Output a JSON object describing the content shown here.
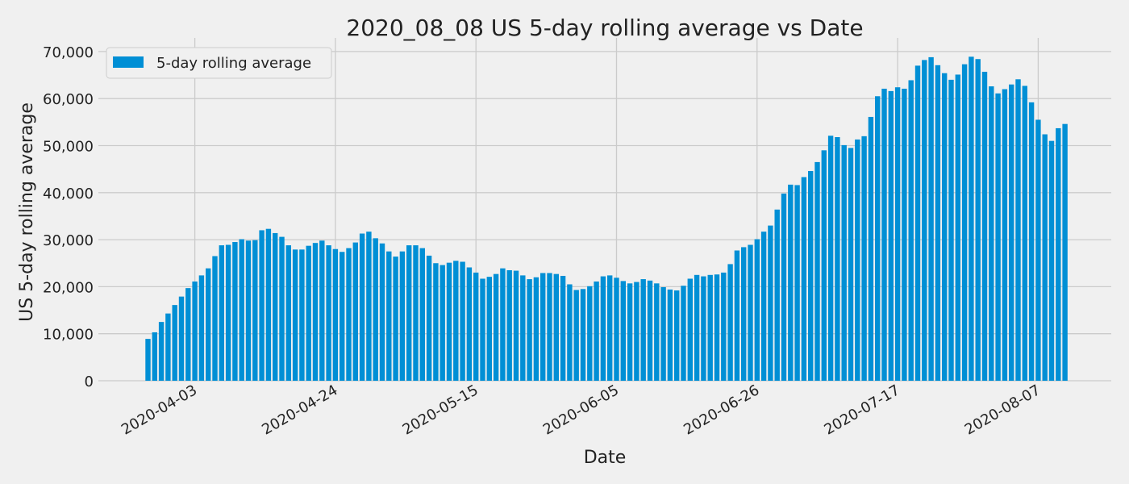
{
  "chart_data": {
    "type": "bar",
    "title": "2020_08_08  US 5-day rolling average vs Date",
    "xlabel": "Date",
    "ylabel": "US 5-day rolling average",
    "start_date": "2020-03-27",
    "x_tick_labels": [
      "2020-04-03",
      "2020-04-24",
      "2020-05-15",
      "2020-06-05",
      "2020-06-26",
      "2020-07-17",
      "2020-08-07"
    ],
    "y_tick_labels": [
      "0",
      "10,000",
      "20,000",
      "30,000",
      "40,000",
      "50,000",
      "60,000",
      "70,000"
    ],
    "ylim": [
      0,
      72000
    ],
    "grid": true,
    "legend_position": "upper-left",
    "series": [
      {
        "name": "5-day rolling average",
        "color": "#008fd5",
        "values": [
          8900,
          10300,
          12500,
          14300,
          16100,
          17900,
          19700,
          21100,
          22400,
          23900,
          26500,
          28800,
          28900,
          29500,
          30100,
          29800,
          29900,
          32000,
          32300,
          31400,
          30600,
          28800,
          27900,
          27900,
          28700,
          29300,
          29800,
          28800,
          28000,
          27400,
          28200,
          29400,
          31300,
          31700,
          30300,
          29200,
          27500,
          26400,
          27500,
          28800,
          28800,
          28200,
          26600,
          25000,
          24600,
          25100,
          25500,
          25300,
          24100,
          23000,
          21700,
          22100,
          22700,
          23900,
          23500,
          23400,
          22400,
          21600,
          22000,
          22900,
          22900,
          22700,
          22300,
          20500,
          19300,
          19500,
          20100,
          21100,
          22200,
          22400,
          21900,
          21200,
          20700,
          21000,
          21600,
          21300,
          20700,
          19900,
          19400,
          19200,
          20200,
          21700,
          22500,
          22200,
          22500,
          22600,
          23000,
          24800,
          27700,
          28400,
          28900,
          30100,
          31700,
          33000,
          36400,
          39800,
          41700,
          41600,
          43300,
          44600,
          46500,
          49000,
          52100,
          51800,
          50100,
          49500,
          51300,
          52000,
          56100,
          60500,
          62100,
          61600,
          62400,
          62100,
          63900,
          67000,
          68200,
          68800,
          67100,
          65400,
          64000,
          65100,
          67300,
          68900,
          68400,
          65700,
          62600,
          61100,
          62000,
          63000,
          64100,
          62700,
          59200,
          55500,
          52400,
          51000,
          53700,
          54600
        ]
      }
    ]
  }
}
